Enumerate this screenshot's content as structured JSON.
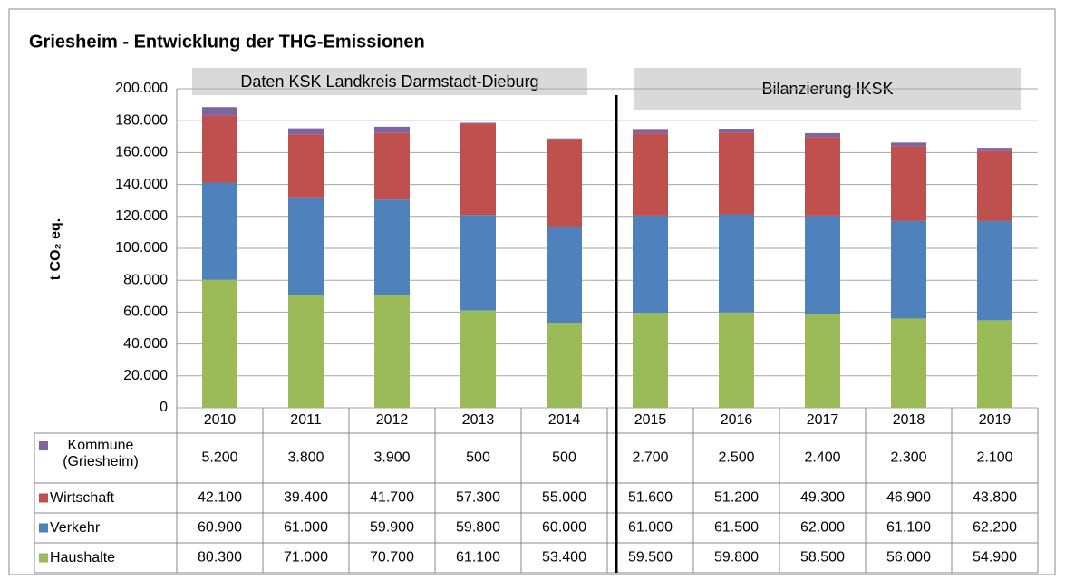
{
  "chart_data": {
    "type": "stacked_bar",
    "title": "Griesheim - Entwicklung der THG-Emissionen",
    "y_label": "t CO₂ eq.",
    "annotations": [
      "Daten KSK Landkreis Darmstadt-Dieburg",
      "Bilanzierung IKSK"
    ],
    "categories": [
      "2010",
      "2011",
      "2012",
      "2013",
      "2014",
      "2015",
      "2016",
      "2017",
      "2018",
      "2019"
    ],
    "series": [
      {
        "name": "Kommune (Griesheim)",
        "color": "#8064a2",
        "values": [
          5200,
          3800,
          3900,
          500,
          500,
          2700,
          2500,
          2400,
          2300,
          2100
        ],
        "value_labels": [
          "5.200",
          "3.800",
          "3.900",
          "500",
          "500",
          "2.700",
          "2.500",
          "2.400",
          "2.300",
          "2.100"
        ]
      },
      {
        "name": "Wirtschaft",
        "color": "#c0504d",
        "values": [
          42100,
          39400,
          41700,
          57300,
          55000,
          51600,
          51200,
          49300,
          46900,
          43800
        ],
        "value_labels": [
          "42.100",
          "39.400",
          "41.700",
          "57.300",
          "55.000",
          "51.600",
          "51.200",
          "49.300",
          "46.900",
          "43.800"
        ]
      },
      {
        "name": "Verkehr",
        "color": "#4f81bd",
        "values": [
          60900,
          61000,
          59900,
          59800,
          60000,
          61000,
          61500,
          62000,
          61100,
          62200
        ],
        "value_labels": [
          "60.900",
          "61.000",
          "59.900",
          "59.800",
          "60.000",
          "61.000",
          "61.500",
          "62.000",
          "61.100",
          "62.200"
        ]
      },
      {
        "name": "Haushalte",
        "color": "#9bbb59",
        "values": [
          80300,
          71000,
          70700,
          61100,
          53400,
          59500,
          59800,
          58500,
          56000,
          54900
        ],
        "value_labels": [
          "80.300",
          "71.000",
          "70.700",
          "61.100",
          "53.400",
          "59.500",
          "59.800",
          "58.500",
          "56.000",
          "54.900"
        ]
      }
    ],
    "ylim": [
      0,
      200000
    ],
    "yticks": [
      0,
      {
        "value": 20000,
        "label": "20.000"
      },
      {
        "value": 40000,
        "label": "40.000"
      },
      {
        "value": 60000,
        "label": "60.000"
      },
      {
        "value": 80000,
        "label": "80.000"
      },
      {
        "value": 100000,
        "label": "100.000"
      },
      {
        "value": 120000,
        "label": "120.000"
      },
      {
        "value": 140000,
        "label": "140.000"
      },
      {
        "value": 160000,
        "label": "160.000"
      },
      {
        "value": 180000,
        "label": "180.000"
      },
      {
        "value": 200000,
        "label": "200.000"
      }
    ],
    "grid": true
  }
}
